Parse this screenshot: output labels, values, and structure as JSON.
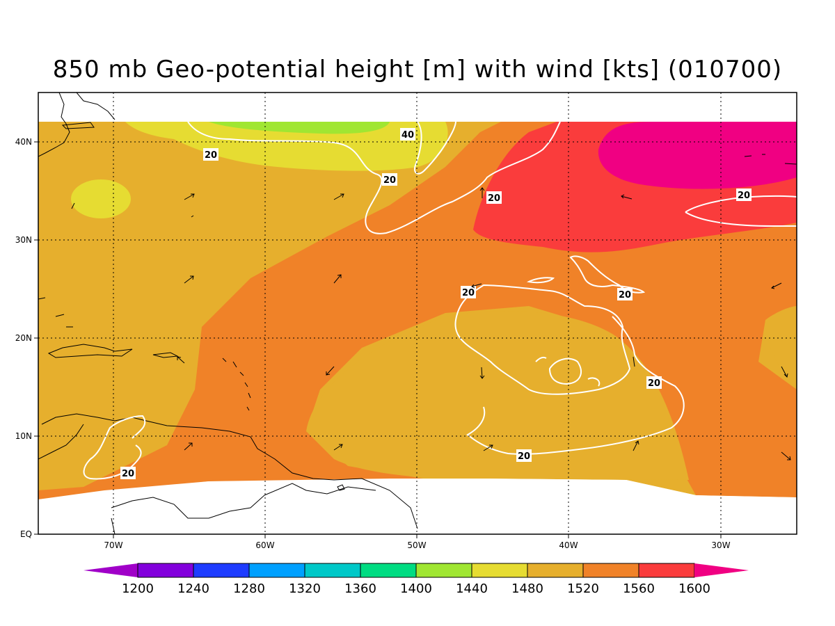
{
  "title": "850 mb Geo-potential height [m] with wind [kts] (010700)",
  "map": {
    "lon_ticks": [
      "70W",
      "60W",
      "50W",
      "40W",
      "30W"
    ],
    "lat_ticks": [
      "EQ",
      "10N",
      "20N",
      "30N",
      "40N"
    ],
    "contour_labels": [
      "20",
      "40",
      "20",
      "20",
      "20",
      "20",
      "20",
      "20",
      "20",
      "20"
    ]
  },
  "colorbar": {
    "levels": [
      "1200",
      "1240",
      "1280",
      "1320",
      "1360",
      "1400",
      "1440",
      "1480",
      "1520",
      "1560",
      "1600"
    ],
    "colors": [
      "#a000c8",
      "#8200dc",
      "#1e3cff",
      "#00a0ff",
      "#00c8c8",
      "#00dc82",
      "#a0e632",
      "#e6dc32",
      "#e6af2d",
      "#f08228",
      "#fa3c3c",
      "#f00082"
    ]
  }
}
